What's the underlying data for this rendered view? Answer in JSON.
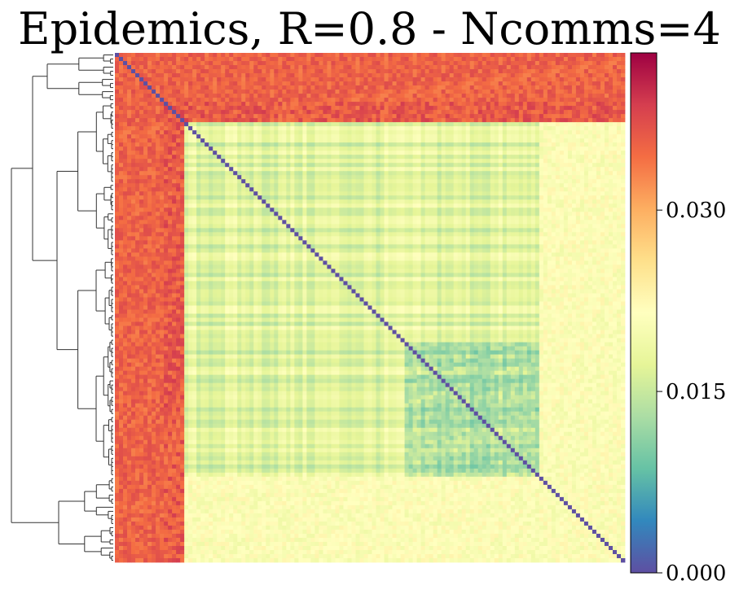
{
  "chart_data": {
    "type": "heatmap",
    "title": "Epidemics, R=0.8 - Ncomms=4",
    "n_nodes": 125,
    "dendrogram": "left",
    "colormap": "Spectral_r",
    "colorbar": {
      "vmin": 0.0,
      "vmax": 0.043,
      "ticks": [
        0.0,
        0.015,
        0.03
      ],
      "tick_labels": [
        "0.000",
        "0.015",
        "0.030"
      ]
    },
    "communities": [
      {
        "size": 12,
        "self": 0.038
      },
      {
        "size": 92,
        "self": 0.017
      },
      {
        "size": 21,
        "self": 0.022
      }
    ],
    "diagonal_value": 0.0,
    "hub_value": 0.037,
    "sub_block_value": 0.011,
    "colors": {
      "low": "#5e4fa2",
      "mid": "#ffffbf",
      "high": "#9e0142"
    }
  }
}
